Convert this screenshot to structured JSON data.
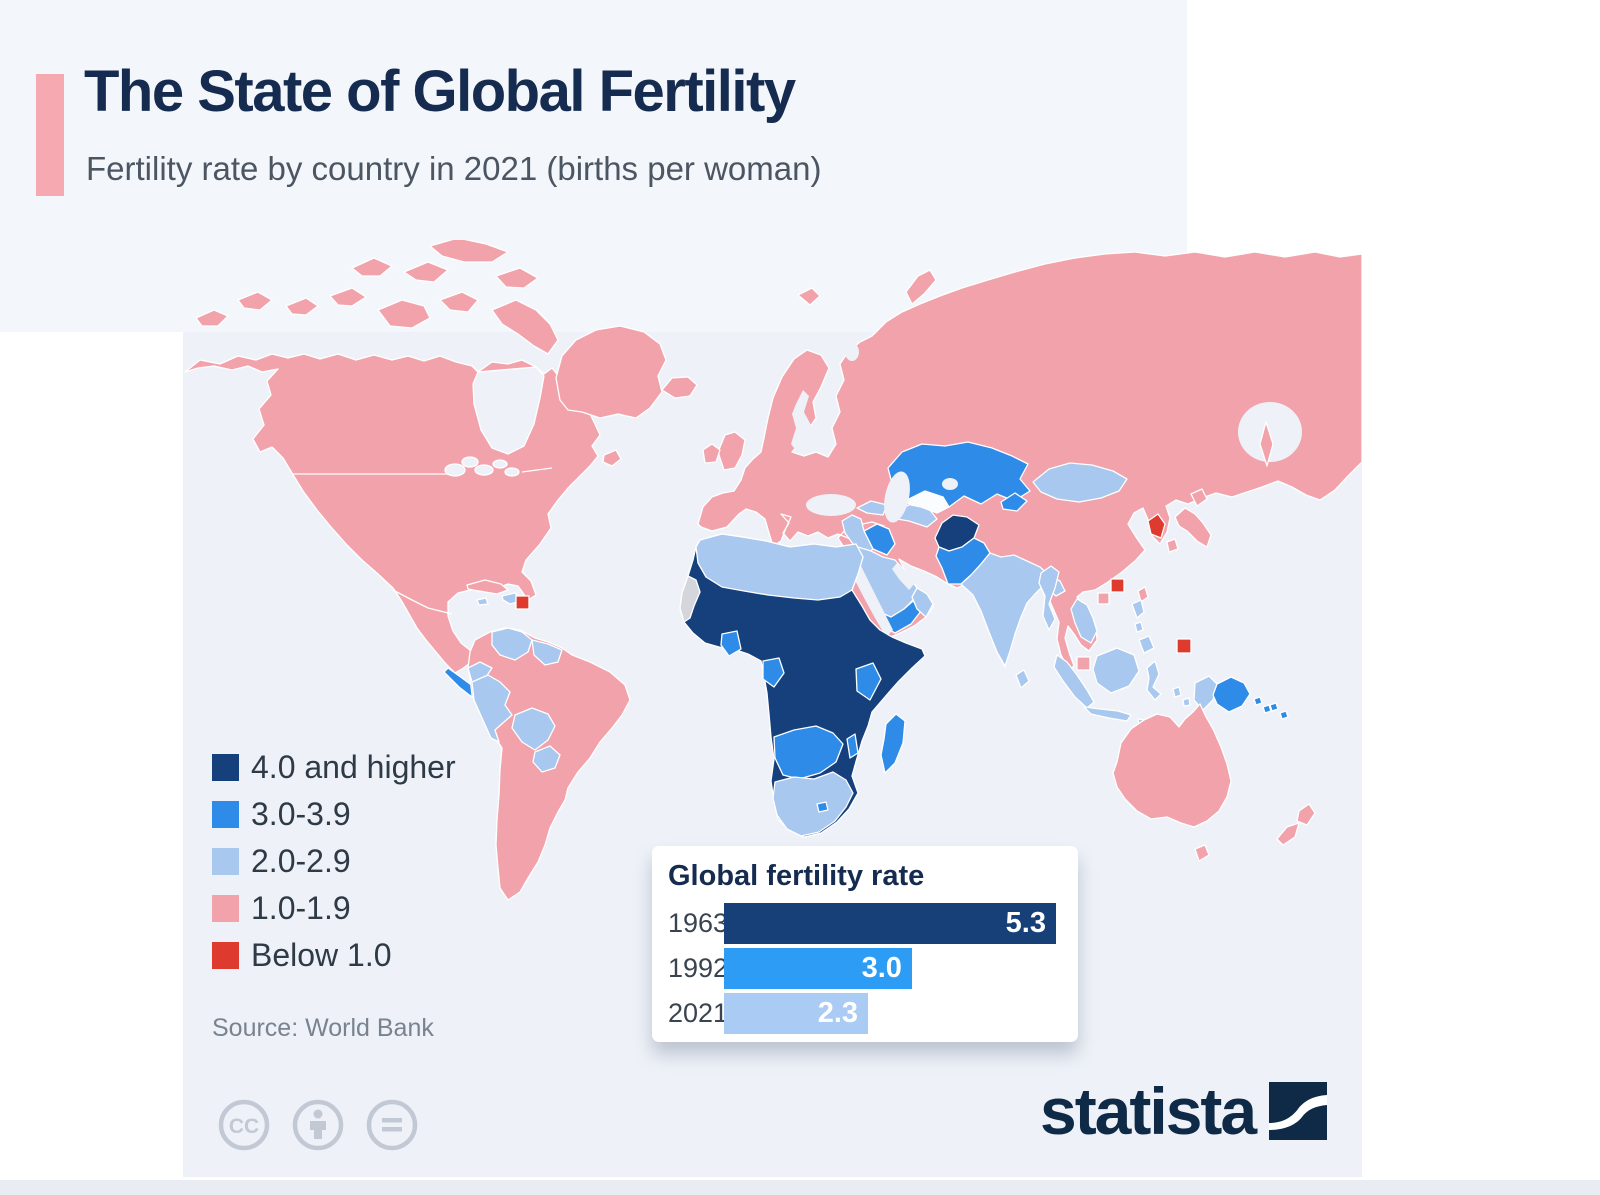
{
  "header": {
    "title": "The State of Global Fertility",
    "subtitle": "Fertility rate by country in 2021 (births per woman)",
    "accent_color": "#f6a9b1"
  },
  "legend": {
    "items": [
      {
        "label": "4.0 and higher",
        "color": "#16407c"
      },
      {
        "label": "3.0-3.9",
        "color": "#2e8be8"
      },
      {
        "label": "2.0-2.9",
        "color": "#a8c8ef"
      },
      {
        "label": "1.0-1.9",
        "color": "#f2a2aa"
      },
      {
        "label": "Below 1.0",
        "color": "#de3a2e"
      }
    ]
  },
  "source": {
    "label": "Source: World Bank"
  },
  "map": {
    "palette": {
      "navy": "#16407c",
      "blue": "#2e8be8",
      "lightblue": "#a8c8ef",
      "pink": "#f2a2aa",
      "red": "#de3a2e",
      "gray": "#d4d6db",
      "ocean": "#eef2f8"
    }
  },
  "chart_data": [
    {
      "type": "choropleth",
      "title": "Fertility rate by country in 2021 (births per woman)",
      "legend_categories": [
        "4.0 and higher",
        "3.0-3.9",
        "2.0-2.9",
        "1.0-1.9",
        "Below 1.0"
      ],
      "legend_colors": [
        "#16407c",
        "#2e8be8",
        "#a8c8ef",
        "#f2a2aa",
        "#de3a2e"
      ],
      "legend_position": "left"
    },
    {
      "type": "bar",
      "title": "Global fertility rate",
      "orientation": "horizontal",
      "categories": [
        "1963",
        "1992",
        "2021"
      ],
      "values": [
        5.3,
        3,
        2.3
      ],
      "value_labels": [
        "5.3",
        "3.0",
        "2.3"
      ],
      "bar_colors": [
        "#173f78",
        "#2d9cf4",
        "#a9cbf4"
      ],
      "xlim": [
        0,
        5.3
      ],
      "grid": false,
      "legend_position": "none"
    }
  ],
  "footer": {
    "cc_glyph": "CC"
  },
  "branding": {
    "logo_text": "statista"
  }
}
